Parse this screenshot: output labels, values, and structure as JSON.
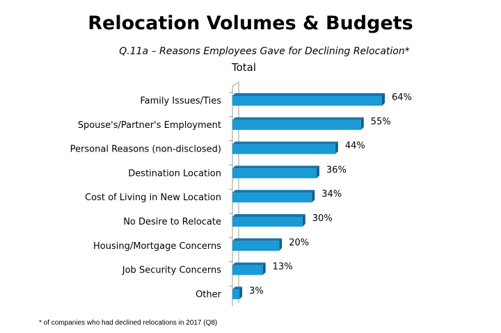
{
  "chart_data": {
    "type": "bar",
    "orientation": "horizontal",
    "title": "Relocation Volumes & Budgets",
    "subtitle": "Q.11a – Reasons Employees Gave for Declining Relocation*",
    "series_name": "Total",
    "categories": [
      "Family Issues/Ties",
      "Spouse's/Partner's Employment",
      "Personal Reasons (non-disclosed)",
      "Destination Location",
      "Cost of Living in New Location",
      "No Desire to Relocate",
      "Housing/Mortgage Concerns",
      "Job Security Concerns",
      "Other"
    ],
    "values": [
      64,
      55,
      44,
      36,
      34,
      30,
      20,
      13,
      3
    ],
    "labels": [
      "64%",
      "55%",
      "44%",
      "36%",
      "34%",
      "30%",
      "20%",
      "13%",
      "3%"
    ],
    "xlim": [
      0,
      100
    ],
    "bar_color": "#1a9ad6",
    "footnote": "* of companies who had declined relocations in 2017 (Q8)"
  }
}
